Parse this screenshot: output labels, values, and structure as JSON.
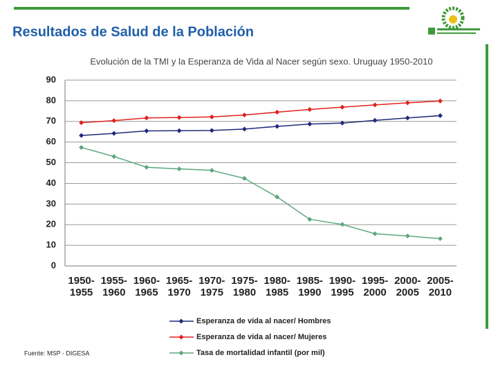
{
  "header": {
    "title": "Resultados de Salud de la Población"
  },
  "chart_data": {
    "type": "line",
    "title": "Evolución de la TMI y la Esperanza de Vida al Nacer según sexo. Uruguay 1950-2010",
    "source": "Fuente: MSP - DIGESA",
    "categories": [
      "1950-1955",
      "1955-1960",
      "1960-1965",
      "1965-1970",
      "1970-1975",
      "1975-1980",
      "1980-1985",
      "1985-1990",
      "1990-1995",
      "1995-2000",
      "2000-2005",
      "2005-2010"
    ],
    "series": [
      {
        "name": "Esperanza de vida al nacer/ Hombres",
        "color": "#1f2a78",
        "values": [
          63.2,
          64.2,
          65.4,
          65.5,
          65.6,
          66.3,
          67.6,
          68.7,
          69.2,
          70.5,
          71.7,
          72.8
        ]
      },
      {
        "name": "Esperanza de vida al nacer/ Mujeres",
        "color": "#e0201b",
        "values": [
          69.4,
          70.4,
          71.7,
          71.9,
          72.2,
          73.1,
          74.5,
          75.8,
          76.9,
          78.0,
          79.0,
          79.9
        ]
      },
      {
        "name": "Tasa de mortalidad infantil (por mil)",
        "color": "#5aa77e",
        "values": [
          57.4,
          53.0,
          47.8,
          47.0,
          46.3,
          42.4,
          33.4,
          22.6,
          20.1,
          15.6,
          14.5,
          13.2
        ]
      }
    ],
    "ylim": [
      0,
      90
    ],
    "yticks": [
      0,
      10,
      20,
      30,
      40,
      50,
      60,
      70,
      80,
      90
    ],
    "grid": true
  }
}
